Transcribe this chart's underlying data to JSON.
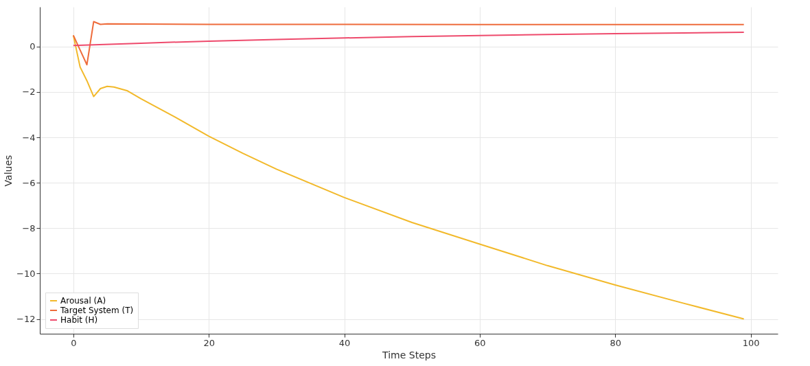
{
  "chart_data": {
    "type": "line",
    "xlabel": "Time Steps",
    "ylabel": "Values",
    "xlim": [
      -4.95,
      104
    ],
    "xticks": [
      0,
      20,
      40,
      60,
      80,
      100
    ],
    "ylim": [
      -12.65,
      1.75
    ],
    "yticks": [
      {
        "value": 0,
        "label": "0"
      },
      {
        "value": -2,
        "label": "−2"
      },
      {
        "value": -4,
        "label": "−4"
      },
      {
        "value": -6,
        "label": "−6"
      },
      {
        "value": -8,
        "label": "−8"
      },
      {
        "value": -10,
        "label": "−10"
      },
      {
        "value": -12,
        "label": "−12"
      }
    ],
    "grid": true,
    "legend": "bottom left",
    "line_style": "solid",
    "series": [
      {
        "name": "Arousal (A)",
        "color": "#f2b92a",
        "x": [
          0,
          1,
          2,
          3,
          4,
          5,
          6,
          8,
          10,
          15,
          20,
          25,
          30,
          40,
          50,
          60,
          70,
          80,
          90,
          99
        ],
        "values": [
          0.49,
          -0.9,
          -1.5,
          -2.2,
          -1.85,
          -1.75,
          -1.78,
          -1.95,
          -2.3,
          -3.1,
          -3.95,
          -4.7,
          -5.4,
          -6.65,
          -7.75,
          -8.7,
          -9.65,
          -10.5,
          -11.3,
          -12.0
        ]
      },
      {
        "name": "Target System (T)",
        "color": "#ee6b3b",
        "x": [
          0,
          1,
          2,
          3,
          4,
          5,
          10,
          20,
          40,
          60,
          80,
          99
        ],
        "values": [
          0.5,
          -0.15,
          -0.8,
          1.1,
          0.98,
          1.0,
          0.99,
          0.98,
          0.98,
          0.97,
          0.97,
          0.97
        ]
      },
      {
        "name": "Habit (H)",
        "color": "#ee4a6c",
        "x": [
          0,
          10,
          20,
          30,
          40,
          50,
          60,
          70,
          80,
          90,
          99
        ],
        "values": [
          0.05,
          0.15,
          0.24,
          0.31,
          0.38,
          0.44,
          0.49,
          0.53,
          0.57,
          0.6,
          0.63
        ]
      }
    ]
  }
}
